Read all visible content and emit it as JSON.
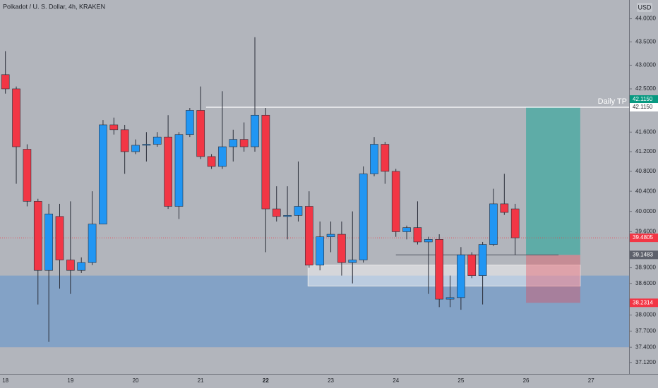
{
  "chart_data": {
    "type": "candlestick",
    "title": "Polkadot / U. S. Dollar, 4h, KRAKEN",
    "currency": "USD",
    "log_scale": true,
    "up_color": "#2196f3",
    "down_color": "#f23645",
    "categories": [
      "18",
      null,
      null,
      null,
      null,
      null,
      "19",
      null,
      null,
      null,
      null,
      null,
      "20",
      null,
      null,
      null,
      null,
      null,
      "21",
      null,
      null,
      null,
      null,
      null,
      "22",
      null,
      null,
      null,
      null,
      null,
      "23",
      null,
      null,
      null,
      null,
      null,
      "24",
      null,
      null,
      null,
      null,
      null,
      "25",
      null,
      null,
      null,
      null,
      null,
      "26",
      null,
      null,
      null,
      null,
      null,
      "27",
      null,
      null,
      null
    ],
    "open": [
      42.8,
      42.5,
      41.25,
      40.2,
      38.85,
      39.9,
      39.05,
      38.85,
      39.0,
      39.75,
      41.75,
      41.65,
      41.2,
      41.33,
      41.35,
      41.5,
      40.1,
      41.55,
      42.05,
      41.1,
      40.9,
      41.3,
      41.45,
      41.3,
      41.95,
      40.05,
      39.9,
      39.92,
      40.1,
      38.95,
      39.5,
      39.55,
      39.0,
      39.05,
      40.75,
      41.35,
      40.8,
      39.6,
      39.68,
      39.4,
      39.45,
      38.3,
      38.33,
      39.15,
      38.75,
      39.35,
      40.15,
      40.05,
      null,
      null,
      null,
      null,
      null,
      null,
      null,
      null,
      null,
      null
    ],
    "high": [
      43.3,
      42.55,
      41.35,
      40.25,
      40.15,
      40.15,
      40.2,
      39.1,
      40.4,
      41.85,
      41.9,
      41.75,
      41.45,
      41.6,
      41.6,
      41.95,
      41.6,
      42.1,
      42.55,
      41.15,
      42.45,
      41.65,
      41.8,
      43.6,
      42.1,
      40.5,
      40.5,
      41.0,
      40.4,
      39.8,
      39.8,
      39.8,
      40.0,
      40.9,
      41.5,
      41.4,
      40.85,
      39.72,
      40.2,
      39.5,
      39.55,
      38.75,
      39.3,
      39.2,
      39.4,
      40.45,
      40.75,
      40.15,
      null,
      null,
      null,
      null,
      null,
      null,
      null,
      null,
      null,
      null
    ],
    "low": [
      42.4,
      40.55,
      40.1,
      38.2,
      37.5,
      38.5,
      38.4,
      38.8,
      38.95,
      39.75,
      41.55,
      40.75,
      41.15,
      41.0,
      41.3,
      40.05,
      39.85,
      41.5,
      41.05,
      40.85,
      40.85,
      41.0,
      41.2,
      41.2,
      39.2,
      39.8,
      39.45,
      39.8,
      38.9,
      38.85,
      39.2,
      38.75,
      38.6,
      39.0,
      40.7,
      40.55,
      39.5,
      39.45,
      39.35,
      38.4,
      38.15,
      38.15,
      38.1,
      38.7,
      38.2,
      39.32,
      39.93,
      39.15,
      null,
      null,
      null,
      null,
      null,
      null,
      null,
      null,
      null,
      null
    ],
    "close": [
      42.5,
      41.3,
      40.2,
      38.85,
      39.95,
      39.05,
      38.85,
      39.0,
      39.75,
      41.75,
      41.65,
      41.2,
      41.33,
      41.35,
      41.5,
      40.1,
      41.55,
      42.05,
      41.1,
      40.9,
      41.3,
      41.45,
      41.3,
      41.95,
      40.05,
      39.9,
      39.92,
      40.1,
      38.95,
      39.5,
      39.55,
      39.0,
      39.05,
      40.75,
      41.35,
      40.8,
      39.6,
      39.68,
      39.4,
      39.45,
      38.3,
      38.33,
      39.15,
      38.75,
      39.35,
      40.15,
      39.98,
      39.4805,
      null,
      null,
      null,
      null,
      null,
      null,
      null,
      null,
      null,
      null
    ],
    "ylim": [
      36.91,
      44.41
    ],
    "yticks": [
      {
        "value": 44,
        "label": "44.0000"
      },
      {
        "value": 43.5,
        "label": "43.5000"
      },
      {
        "value": 43,
        "label": "43.0000"
      },
      {
        "value": 42.5,
        "label": "42.5000"
      },
      {
        "value": 41.6,
        "label": "41.6000"
      },
      {
        "value": 41.2,
        "label": "41.2000"
      },
      {
        "value": 40.8,
        "label": "40.8000"
      },
      {
        "value": 40.4,
        "label": "40.4000"
      },
      {
        "value": 40,
        "label": "40.0000"
      },
      {
        "value": 39.6,
        "label": "39.6000"
      },
      {
        "value": 38.9,
        "label": "38.9000"
      },
      {
        "value": 38.6,
        "label": "38.6000"
      },
      {
        "value": 38,
        "label": "38.0000"
      },
      {
        "value": 37.7,
        "label": "37.7000"
      },
      {
        "value": 37.4,
        "label": "37.4000"
      },
      {
        "value": 37.12,
        "label": "37.1200"
      }
    ],
    "price_labels": [
      {
        "value": 42.115,
        "label": "42.1150",
        "color": "#089981"
      },
      {
        "value": 42.115,
        "label": "42.1150",
        "color": "#ffffff"
      },
      {
        "value": 39.4805,
        "label": "39.4805",
        "color": "#f23645"
      },
      {
        "value": 39.1483,
        "label": "39.1483",
        "color": "#5d606b"
      },
      {
        "value": 38.2314,
        "label": "38.2314",
        "color": "#f23645"
      }
    ],
    "zones": [
      {
        "low": 37.4,
        "high": 38.75,
        "from": -0.5,
        "to": 57.5,
        "color": "rgba(33,120,220,0.32)"
      },
      {
        "low": 38.55,
        "high": 38.95,
        "from": 27.9,
        "to": 53,
        "color": "rgba(255,255,255,0.45)"
      },
      {
        "low": 39.1483,
        "high": 42.115,
        "from": 48,
        "to": 53,
        "color": "rgba(38,166,154,0.6)"
      },
      {
        "low": 38.2314,
        "high": 39.1483,
        "from": 48,
        "to": 53,
        "color": "rgba(242,54,69,0.32)"
      }
    ],
    "lines": [
      {
        "value": 42.115,
        "from": 18.5,
        "to": 57.5,
        "color": "#ffffff",
        "label": "Daily TP"
      },
      {
        "value": 39.1483,
        "from": 36,
        "to": 51,
        "color": "#5d606b"
      },
      {
        "value": 39.4805,
        "from": -0.5,
        "to": 57.5,
        "color": "#f23645",
        "dashed": true
      }
    ]
  }
}
